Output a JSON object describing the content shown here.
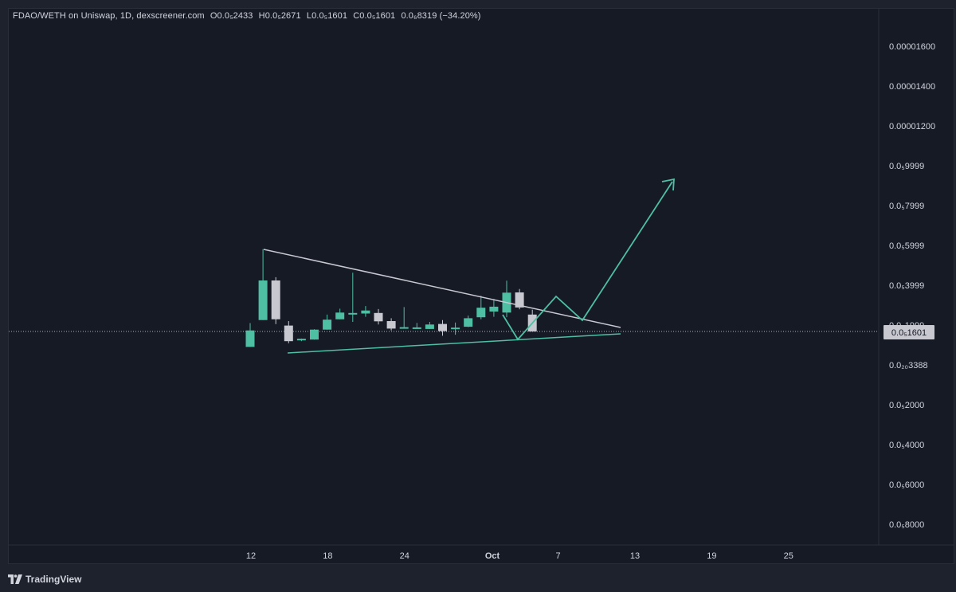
{
  "header": {
    "symbol": "FDAO/WETH on Uniswap, 1D, dexscreener.com",
    "open": "O0.0₅2433",
    "high": "H0.0₅2671",
    "low": "L0.0₅1601",
    "close": "C0.0₅1601",
    "change": "0.0₆8319 (−34.20%)"
  },
  "footer": {
    "brand": "TradingView"
  },
  "colors": {
    "background": "#161a25",
    "up": "#4ebfa3",
    "down": "#c8c8d0",
    "trendline_upper": "#c8c8d0",
    "trendline_lower": "#4ebfa3",
    "projection": "#4ebfa3",
    "price_label_bg": "#c8c8d0"
  },
  "chart_data": {
    "type": "candlestick",
    "price_axis_ticks": [
      "0.00001600",
      "0.00001400",
      "0.00001200",
      "0.0₅9999",
      "0.0₅7999",
      "0.0₅5999",
      "0.0₅3999",
      "0.0₅1999",
      "0.0₂₀3388",
      "0.0₅2000",
      "0.0₅4000",
      "0.0₅6000",
      "0.0₅8000"
    ],
    "last_price_label": "0.0₅1601",
    "x_ticks": [
      "12",
      "18",
      "24",
      "Oct",
      "7",
      "13",
      "19",
      "25"
    ],
    "candles": [
      {
        "date": "Sep 11",
        "o": 8.4e-07,
        "h": 2.01e-06,
        "l": 8.4e-07,
        "c": 1.65e-06,
        "dir": "up"
      },
      {
        "date": "Sep 12",
        "o": 2.16e-06,
        "h": 5.65e-06,
        "l": 2.16e-06,
        "c": 4.11e-06,
        "dir": "up"
      },
      {
        "date": "Sep 13",
        "o": 4.11e-06,
        "h": 4.27e-06,
        "l": 1.96e-06,
        "c": 2.2e-06,
        "dir": "down"
      },
      {
        "date": "Sep 14",
        "o": 1.89e-06,
        "h": 2.11e-06,
        "l": 1.02e-06,
        "c": 1.12e-06,
        "dir": "down"
      },
      {
        "date": "Sep 15",
        "o": 1.18e-06,
        "h": 1.25e-06,
        "l": 1.12e-06,
        "c": 1.24e-06,
        "dir": "up"
      },
      {
        "date": "Sep 16",
        "o": 1.2e-06,
        "h": 1.71e-06,
        "l": 1.2e-06,
        "c": 1.69e-06,
        "dir": "up"
      },
      {
        "date": "Sep 17",
        "o": 1.69e-06,
        "h": 2.43e-06,
        "l": 1.69e-06,
        "c": 2.18e-06,
        "dir": "up"
      },
      {
        "date": "Sep 18",
        "o": 2.2e-06,
        "h": 2.72e-06,
        "l": 2.2e-06,
        "c": 2.53e-06,
        "dir": "up"
      },
      {
        "date": "Sep 19",
        "o": 2.46e-06,
        "h": 4.49e-06,
        "l": 2.07e-06,
        "c": 2.51e-06,
        "dir": "up"
      },
      {
        "date": "Sep 20",
        "o": 2.48e-06,
        "h": 2.85e-06,
        "l": 2.32e-06,
        "c": 2.63e-06,
        "dir": "up"
      },
      {
        "date": "Sep 21",
        "o": 2.51e-06,
        "h": 2.7e-06,
        "l": 1.94e-06,
        "c": 2.1e-06,
        "dir": "down"
      },
      {
        "date": "Sep 22",
        "o": 2.11e-06,
        "h": 2.25e-06,
        "l": 1.65e-06,
        "c": 1.74e-06,
        "dir": "down"
      },
      {
        "date": "Sep 23",
        "o": 1.81e-06,
        "h": 2.8e-06,
        "l": 1.76e-06,
        "c": 1.81e-06,
        "dir": "up"
      },
      {
        "date": "Sep 24",
        "o": 1.8e-06,
        "h": 2.02e-06,
        "l": 1.73e-06,
        "c": 1.75e-06,
        "dir": "up"
      },
      {
        "date": "Sep 25",
        "o": 1.72e-06,
        "h": 2.07e-06,
        "l": 1.72e-06,
        "c": 1.94e-06,
        "dir": "up"
      },
      {
        "date": "Sep 26",
        "o": 1.97e-06,
        "h": 2.16e-06,
        "l": 1.39e-06,
        "c": 1.62e-06,
        "dir": "down"
      },
      {
        "date": "Sep 27",
        "o": 1.75e-06,
        "h": 2.04e-06,
        "l": 1.44e-06,
        "c": 1.79e-06,
        "dir": "up"
      },
      {
        "date": "Sep 28",
        "o": 1.83e-06,
        "h": 2.38e-06,
        "l": 1.81e-06,
        "c": 2.25e-06,
        "dir": "up"
      },
      {
        "date": "Sep 29",
        "o": 2.3e-06,
        "h": 3.36e-06,
        "l": 2.2e-06,
        "c": 2.77e-06,
        "dir": "up"
      },
      {
        "date": "Sep 30",
        "o": 2.58e-06,
        "h": 3.2e-06,
        "l": 2.32e-06,
        "c": 2.82e-06,
        "dir": "up"
      },
      {
        "date": "Oct 1",
        "o": 2.53e-06,
        "h": 4.1e-06,
        "l": 2.3e-06,
        "c": 3.51e-06,
        "dir": "up"
      },
      {
        "date": "Oct 2",
        "o": 3.52e-06,
        "h": 3.69e-06,
        "l": 2.69e-06,
        "c": 2.78e-06,
        "dir": "down"
      },
      {
        "date": "Oct 3",
        "o": 2.43e-06,
        "h": 2.67e-06,
        "l": 1.6e-06,
        "c": 1.6e-06,
        "dir": "down"
      }
    ]
  }
}
